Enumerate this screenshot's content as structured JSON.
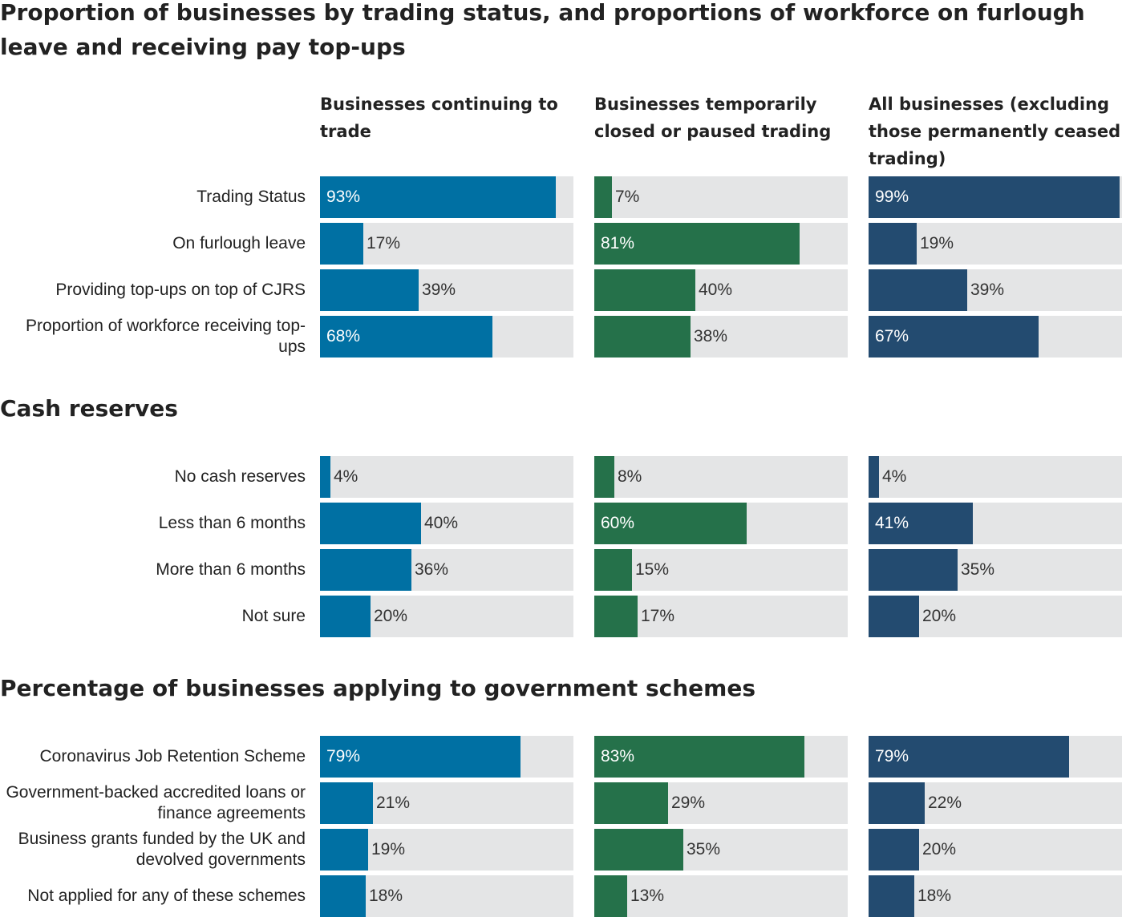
{
  "colors": {
    "continuing": "#0070a3",
    "closed": "#25714a",
    "all": "#234b70",
    "track": "#e4e5e6"
  },
  "columns": [
    "Businesses continuing to trade",
    "Businesses temporarily closed or paused trading",
    "All businesses (excluding those permanently ceased trading)"
  ],
  "chart_data": [
    {
      "type": "bar",
      "title": "Proportion of businesses by trading status, and proportions of workforce on furlough leave and receiving pay top-ups",
      "categories": [
        "Trading Status",
        "On furlough leave",
        "Providing top-ups on top of CJRS",
        "Proportion of workforce receiving top-ups"
      ],
      "series": [
        {
          "name": "Businesses continuing to trade",
          "values": [
            93,
            17,
            39,
            68
          ]
        },
        {
          "name": "Businesses temporarily closed or paused trading",
          "values": [
            7,
            81,
            40,
            38
          ]
        },
        {
          "name": "All businesses (excluding those permanently ceased trading)",
          "values": [
            99,
            19,
            39,
            67
          ]
        }
      ],
      "ylim": [
        0,
        100
      ]
    },
    {
      "type": "bar",
      "title": "Cash reserves",
      "categories": [
        "No cash reserves",
        "Less than 6 months",
        "More than 6 months",
        "Not sure"
      ],
      "series": [
        {
          "name": "Businesses continuing to trade",
          "values": [
            4,
            40,
            36,
            20
          ]
        },
        {
          "name": "Businesses temporarily closed or paused trading",
          "values": [
            8,
            60,
            15,
            17
          ]
        },
        {
          "name": "All businesses (excluding those permanently ceased trading)",
          "values": [
            4,
            41,
            35,
            20
          ]
        }
      ],
      "ylim": [
        0,
        100
      ]
    },
    {
      "type": "bar",
      "title": "Percentage of businesses applying to government schemes",
      "categories": [
        "Coronavirus Job Retention Scheme",
        "Government-backed accredited loans or finance agreements",
        "Business grants funded by the UK and devolved governments",
        "Not applied for any of these schemes"
      ],
      "series": [
        {
          "name": "Businesses continuing to trade",
          "values": [
            79,
            21,
            19,
            18
          ]
        },
        {
          "name": "Businesses temporarily closed or paused trading",
          "values": [
            83,
            29,
            35,
            13
          ]
        },
        {
          "name": "All businesses (excluding those permanently ceased trading)",
          "values": [
            79,
            22,
            20,
            18
          ]
        }
      ],
      "ylim": [
        0,
        100
      ]
    }
  ]
}
